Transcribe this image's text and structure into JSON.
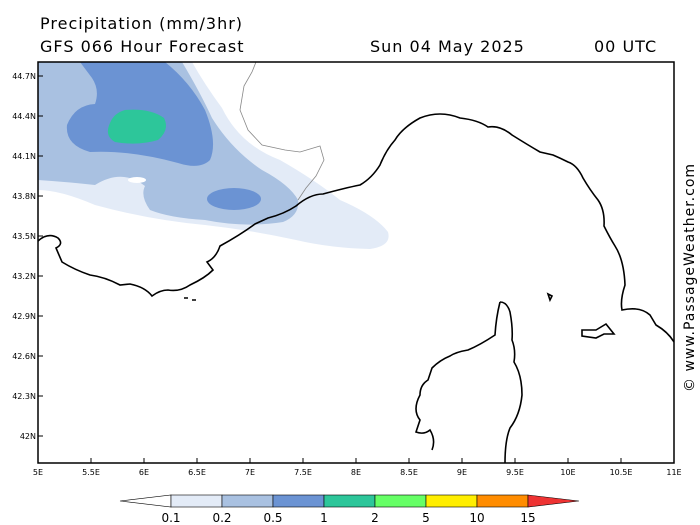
{
  "header": {
    "title": "Precipitation (mm/3hr)",
    "forecast": "GFS 066 Hour Forecast",
    "date": "Sun 04 May 2025",
    "time": "00 UTC"
  },
  "map": {
    "lon_ticks": [
      "5E",
      "5.5E",
      "6E",
      "6.5E",
      "7E",
      "7.5E",
      "8E",
      "8.5E",
      "9E",
      "9.5E",
      "10E",
      "10.5E",
      "11E"
    ],
    "lat_ticks": [
      "44.7N",
      "44.4N",
      "44.1N",
      "43.8N",
      "43.5N",
      "43.2N",
      "42.9N",
      "42.6N",
      "42.3N",
      "42N"
    ],
    "credit": "© www.PassageWeather.com",
    "colors": {
      "p01": "#e3ebf7",
      "p02": "#a9c1e1",
      "p05": "#6b93d3",
      "p1": "#2dc69a"
    }
  },
  "legend": {
    "labels": [
      "0.1",
      "0.2",
      "0.5",
      "1",
      "2",
      "5",
      "10",
      "15"
    ],
    "colors": [
      "#ffffff",
      "#e3ebf7",
      "#a9c1e1",
      "#6b93d3",
      "#2dc69a",
      "#66ff66",
      "#ffee00",
      "#ff8c00",
      "#ee3333"
    ]
  }
}
